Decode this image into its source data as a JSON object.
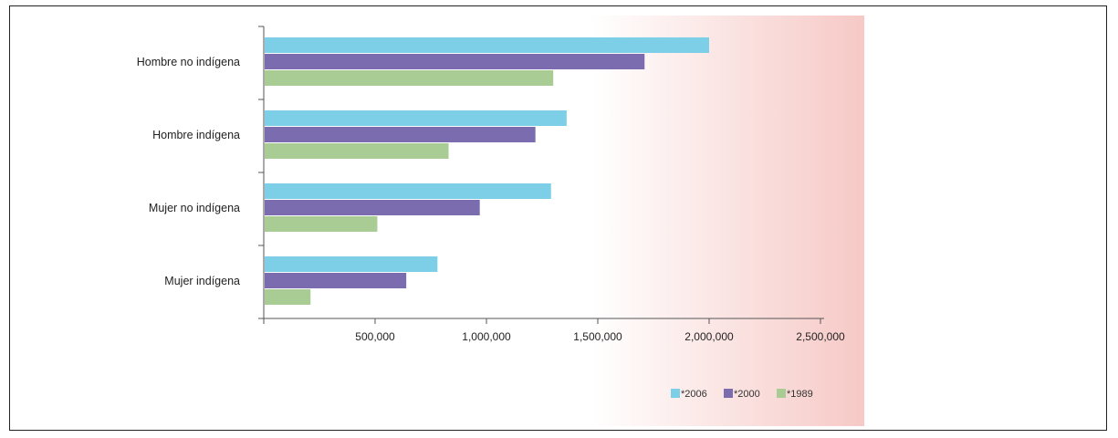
{
  "chart_data": {
    "type": "bar",
    "orientation": "horizontal",
    "title": "",
    "xlabel": "",
    "ylabel": "",
    "categories": [
      "Hombre no indígena",
      "Hombre indígena",
      "Mujer no indígena",
      "Mujer indígena"
    ],
    "series": [
      {
        "name": "*2006",
        "color": "#7ccfe6",
        "values": [
          2000000,
          1360000,
          1290000,
          780000
        ]
      },
      {
        "name": "*2000",
        "color": "#7b6cb0",
        "values": [
          1710000,
          1220000,
          970000,
          640000
        ]
      },
      {
        "name": "*1989",
        "color": "#a8cc94",
        "values": [
          1300000,
          830000,
          510000,
          210000
        ]
      }
    ],
    "xlim": [
      0,
      2500000
    ],
    "xticks": [
      500000,
      1000000,
      1500000,
      2000000,
      2500000
    ],
    "xtick_labels": [
      "500,000",
      "1,000,000",
      "1,500,000",
      "2,000,000",
      "2,500,000"
    ],
    "grid": false,
    "legend_position": "bottom-right"
  }
}
